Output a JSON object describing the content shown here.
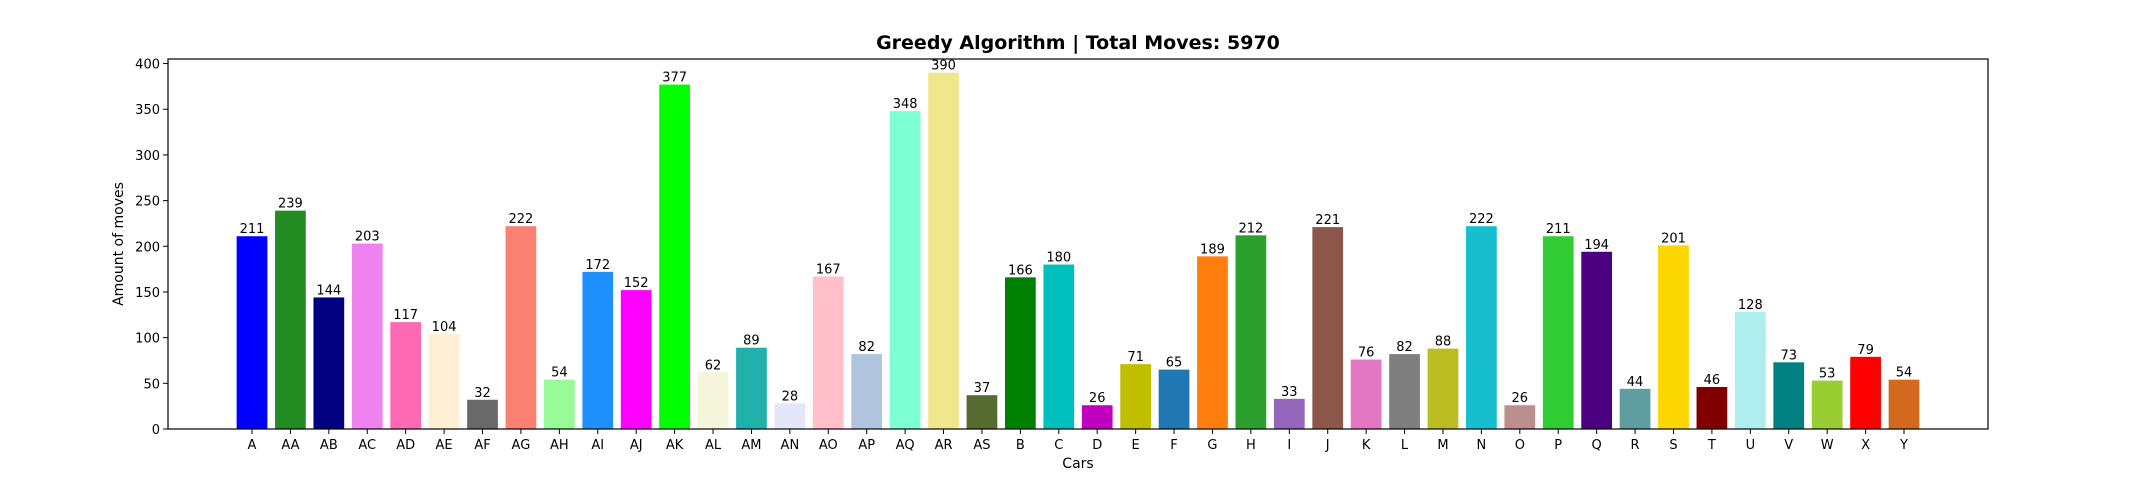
{
  "chart_data": {
    "type": "bar",
    "title": "Greedy Algorithm | Total Moves: 5970",
    "xlabel": "Cars",
    "ylabel": "Amount of moves",
    "ylim": [
      0,
      405
    ],
    "yticks": [
      0,
      50,
      100,
      150,
      200,
      250,
      300,
      350,
      400
    ],
    "grid": false,
    "categories": [
      "A",
      "AA",
      "AB",
      "AC",
      "AD",
      "AE",
      "AF",
      "AG",
      "AH",
      "AI",
      "AJ",
      "AK",
      "AL",
      "AM",
      "AN",
      "AO",
      "AP",
      "AQ",
      "AR",
      "AS",
      "B",
      "C",
      "D",
      "E",
      "F",
      "G",
      "H",
      "I",
      "J",
      "K",
      "L",
      "M",
      "N",
      "O",
      "P",
      "Q",
      "R",
      "S",
      "T",
      "U",
      "V",
      "W",
      "X",
      "Y"
    ],
    "values": [
      211,
      239,
      144,
      203,
      117,
      104,
      32,
      222,
      54,
      172,
      152,
      377,
      62,
      89,
      28,
      167,
      82,
      348,
      390,
      37,
      166,
      180,
      26,
      71,
      65,
      189,
      212,
      33,
      221,
      76,
      82,
      88,
      222,
      26,
      211,
      194,
      44,
      201,
      46,
      128,
      73,
      53,
      79,
      54
    ],
    "colors": [
      "#0000ff",
      "#228b22",
      "#000080",
      "#ee82ee",
      "#ff69b4",
      "#ffefd5",
      "#696969",
      "#fa8072",
      "#98fb98",
      "#1e90ff",
      "#ff00ff",
      "#00ff00",
      "#f5f5dc",
      "#20b2aa",
      "#e6e6fa",
      "#ffc0cb",
      "#b0c4de",
      "#7fffd4",
      "#f0e68c",
      "#556b2f",
      "#008000",
      "#00bfbf",
      "#bf00bf",
      "#bfbf00",
      "#1f77b4",
      "#ff7f0e",
      "#2ca02c",
      "#9467bd",
      "#8c564b",
      "#e377c2",
      "#7f7f7f",
      "#bcbd22",
      "#17becf",
      "#bc8f8f",
      "#32cd32",
      "#4b0082",
      "#5f9ea0",
      "#ffd700",
      "#800000",
      "#afeeee",
      "#008080",
      "#9acd32",
      "#ff0000",
      "#d2691e"
    ]
  }
}
